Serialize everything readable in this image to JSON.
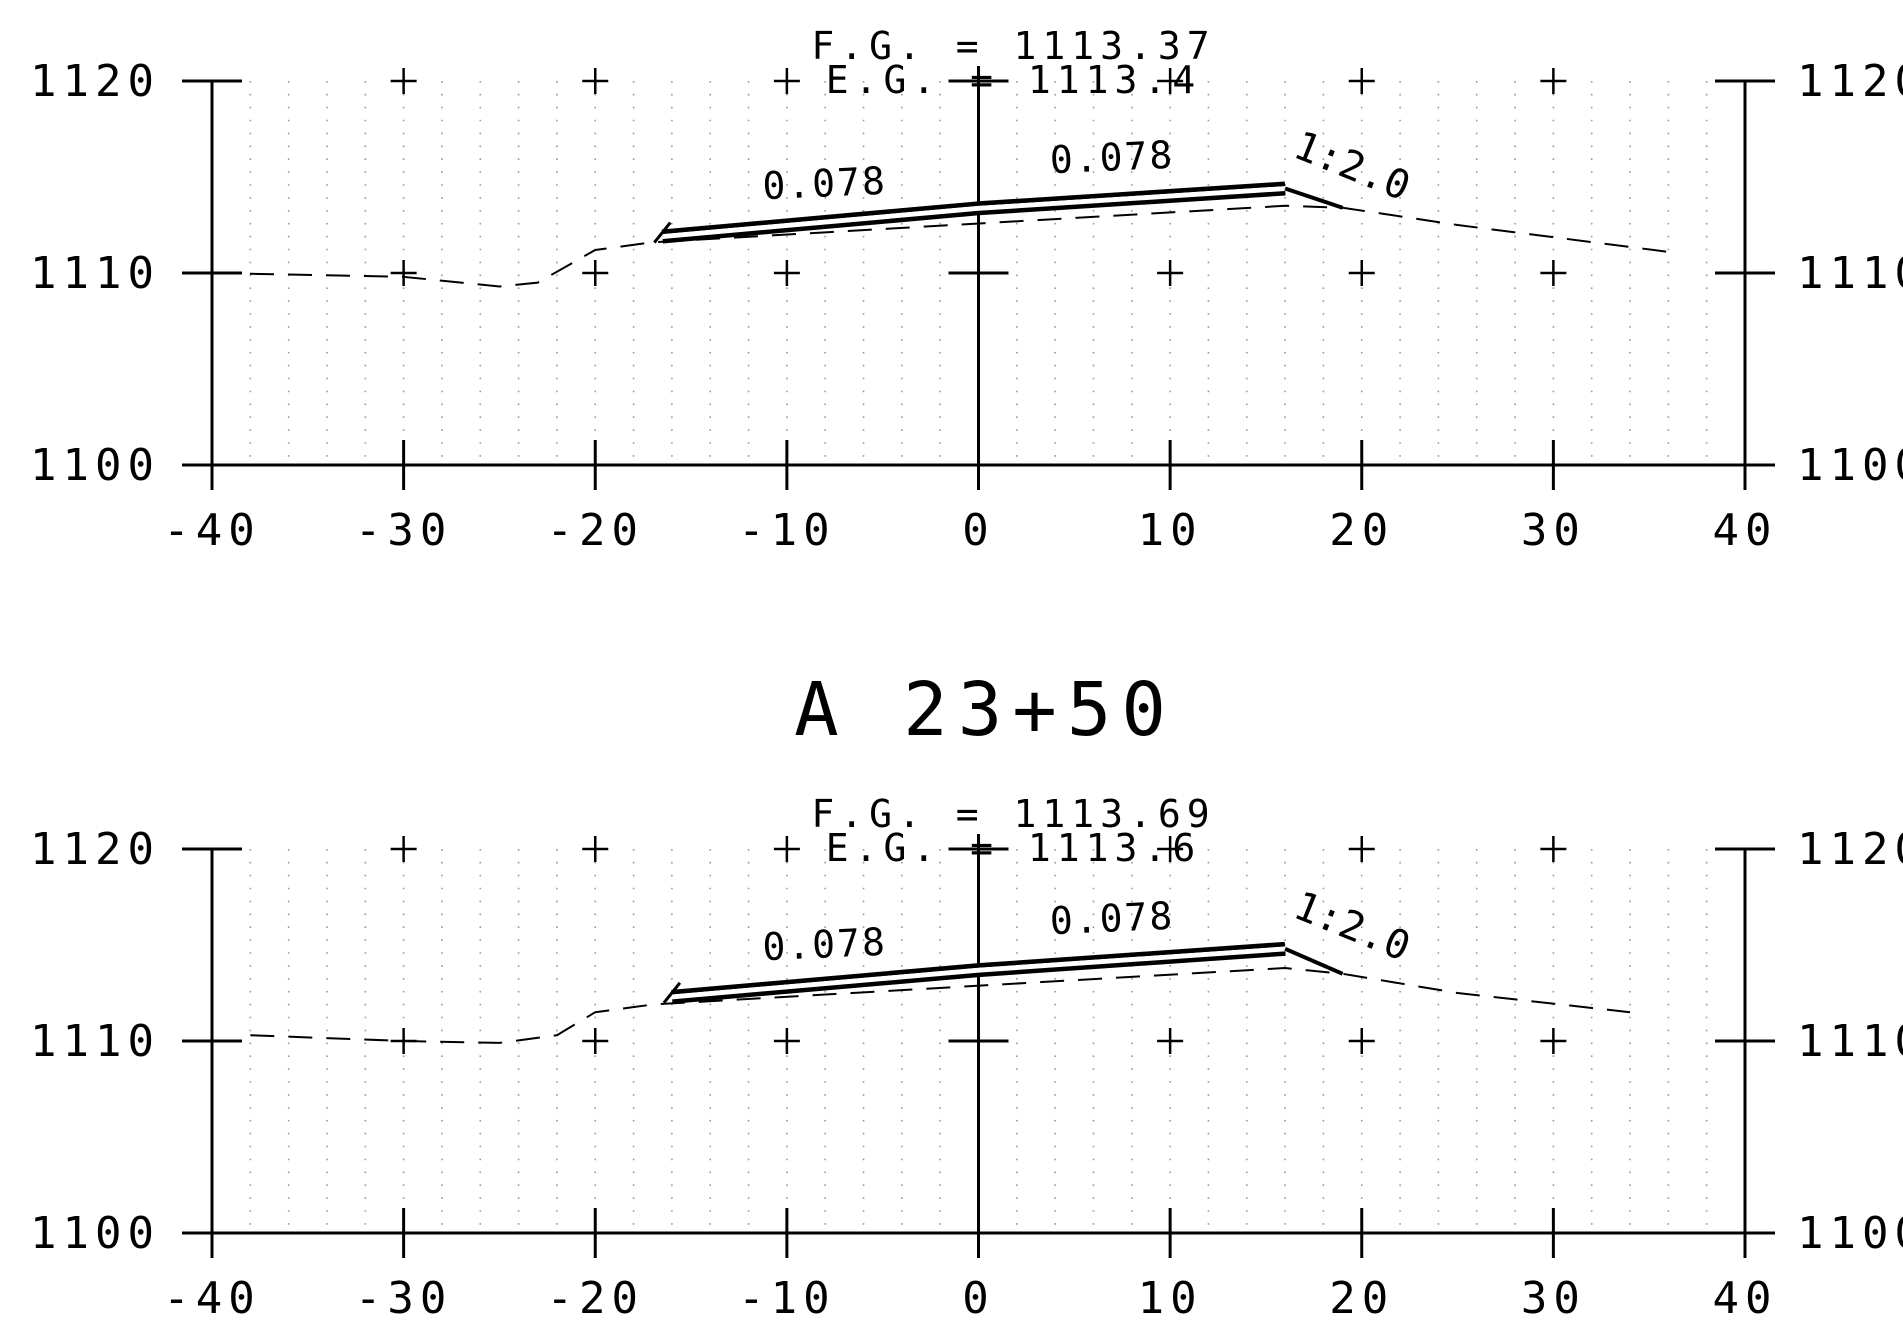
{
  "station_label": "A 23+50",
  "sections": [
    {
      "fg_label": "F.G.  =  1113.37",
      "eg_label": "E.G.  =  1113.4",
      "left_slope_label": "0.078",
      "right_slope_label": "0.078",
      "side_slope_label": "1:2.0",
      "centerline_elev": 1113.37,
      "left_edge": [
        -16.5,
        1111.9
      ],
      "right_edge": [
        16,
        1114.4
      ],
      "daylight": [
        19,
        1113.4
      ],
      "existing_ground": [
        [
          -40,
          1110.0
        ],
        [
          -30,
          1109.8
        ],
        [
          -25,
          1109.3
        ],
        [
          -23,
          1109.5
        ],
        [
          -20,
          1111.2
        ],
        [
          -17,
          1111.6
        ],
        [
          16,
          1113.5
        ],
        [
          19,
          1113.4
        ],
        [
          25,
          1112.5
        ],
        [
          36,
          1111.1
        ]
      ]
    },
    {
      "fg_label": "F.G.  =  1113.69",
      "eg_label": "E.G.  =  1113.6",
      "left_slope_label": "0.078",
      "right_slope_label": "0.078",
      "side_slope_label": "1:2.0",
      "centerline_elev": 1113.69,
      "left_edge": [
        -16,
        1112.3
      ],
      "right_edge": [
        16,
        1114.8
      ],
      "daylight": [
        19,
        1113.5
      ],
      "existing_ground": [
        [
          -38,
          1110.3
        ],
        [
          -30,
          1110.0
        ],
        [
          -25,
          1109.9
        ],
        [
          -22,
          1110.3
        ],
        [
          -20,
          1111.5
        ],
        [
          -17,
          1111.9
        ],
        [
          16,
          1113.8
        ],
        [
          19,
          1113.5
        ],
        [
          25,
          1112.5
        ],
        [
          34,
          1111.5
        ]
      ]
    }
  ],
  "chart_data": [
    {
      "type": "line",
      "title": "",
      "xlabel": "",
      "ylabel": "",
      "xlim": [
        -40,
        40
      ],
      "ylim": [
        1100,
        1120
      ],
      "x_ticks": [
        "-40",
        "-30",
        "-20",
        "-10",
        "0",
        "10",
        "20",
        "30",
        "40"
      ],
      "y_ticks": [
        "1100",
        "1110",
        "1120"
      ],
      "grid": true,
      "series": [
        {
          "x": [
            -16.5,
            0,
            16
          ],
          "y": [
            1111.9,
            1113.37,
            1114.4
          ]
        },
        {
          "x": [
            -40,
            -30,
            -25,
            -23,
            -20,
            -17,
            16,
            19,
            25,
            36
          ],
          "y": [
            1110.0,
            1109.8,
            1109.3,
            1109.5,
            1111.2,
            1111.6,
            1113.5,
            1113.4,
            1112.5,
            1111.1
          ]
        }
      ]
    },
    {
      "type": "line",
      "title": "",
      "xlabel": "",
      "ylabel": "",
      "xlim": [
        -40,
        40
      ],
      "ylim": [
        1100,
        1120
      ],
      "x_ticks": [
        "-40",
        "-30",
        "-20",
        "-10",
        "0",
        "10",
        "20",
        "30",
        "40"
      ],
      "y_ticks": [
        "1100",
        "1110",
        "1120"
      ],
      "grid": true,
      "series": [
        {
          "x": [
            -16,
            0,
            16
          ],
          "y": [
            1112.3,
            1113.69,
            1114.8
          ]
        },
        {
          "x": [
            -38,
            -30,
            -25,
            -22,
            -20,
            -17,
            16,
            19,
            25,
            34
          ],
          "y": [
            1110.3,
            1110.0,
            1109.9,
            1110.3,
            1111.5,
            1111.9,
            1113.8,
            1113.5,
            1112.5,
            1111.5
          ]
        }
      ]
    }
  ]
}
